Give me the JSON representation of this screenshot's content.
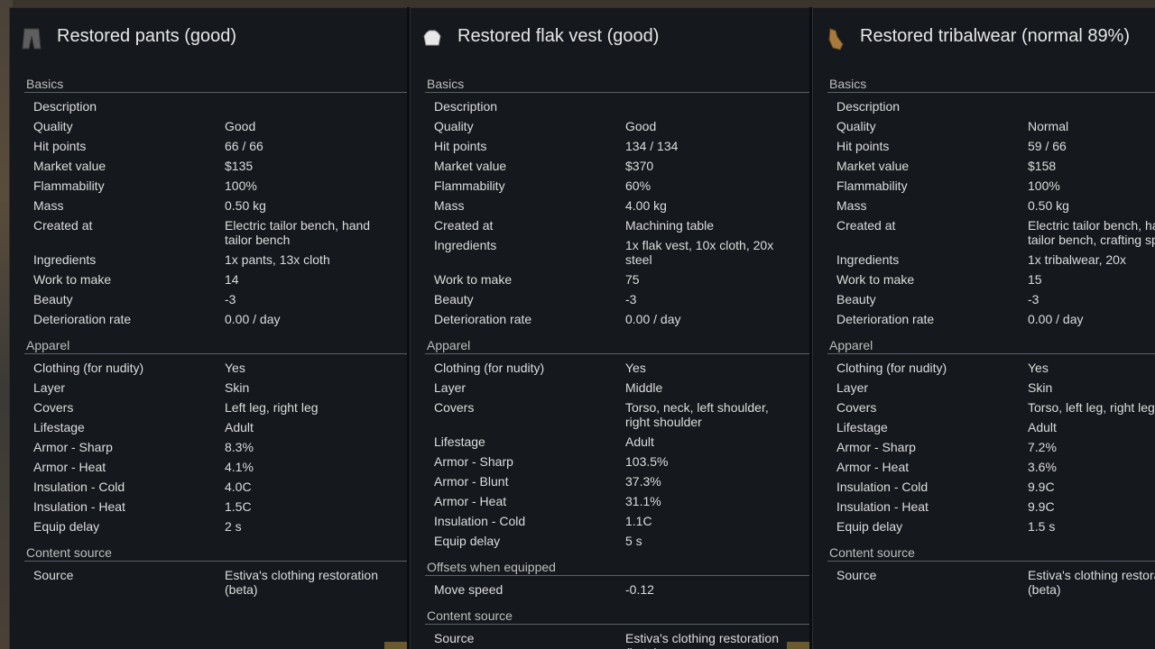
{
  "panels": [
    {
      "title": "Restored pants (good)",
      "icon": "pants-icon",
      "basics_title": "Basics",
      "basics": [
        {
          "label": "Description",
          "value": ""
        },
        {
          "label": "Quality",
          "value": "Good"
        },
        {
          "label": "Hit points",
          "value": "66 / 66"
        },
        {
          "label": "Market value",
          "value": "$135"
        },
        {
          "label": "Flammability",
          "value": "100%"
        },
        {
          "label": "Mass",
          "value": "0.50 kg"
        },
        {
          "label": "Created at",
          "value": "Electric tailor bench, hand tailor bench"
        },
        {
          "label": "Ingredients",
          "value": "1x pants, 13x cloth"
        },
        {
          "label": "Work to make",
          "value": "14"
        },
        {
          "label": "Beauty",
          "value": "-3"
        },
        {
          "label": "Deterioration rate",
          "value": "0.00 / day"
        }
      ],
      "apparel_title": "Apparel",
      "apparel": [
        {
          "label": "Clothing (for nudity)",
          "value": "Yes"
        },
        {
          "label": "Layer",
          "value": "Skin"
        },
        {
          "label": "Covers",
          "value": "Left leg, right leg"
        },
        {
          "label": "Lifestage",
          "value": "Adult"
        },
        {
          "label": "Armor - Sharp",
          "value": "8.3%"
        },
        {
          "label": "Armor - Heat",
          "value": "4.1%"
        },
        {
          "label": "Insulation - Cold",
          "value": "4.0C"
        },
        {
          "label": "Insulation - Heat",
          "value": "1.5C"
        },
        {
          "label": "Equip delay",
          "value": "2 s"
        }
      ],
      "offsets_title": "",
      "offsets": [],
      "content_title": "Content source",
      "content": [
        {
          "label": "Source",
          "value": "Estiva's clothing restoration (beta)"
        }
      ]
    },
    {
      "title": "Restored flak vest (good)",
      "icon": "flak-vest-icon",
      "basics_title": "Basics",
      "basics": [
        {
          "label": "Description",
          "value": ""
        },
        {
          "label": "Quality",
          "value": "Good"
        },
        {
          "label": "Hit points",
          "value": "134 / 134"
        },
        {
          "label": "Market value",
          "value": "$370"
        },
        {
          "label": "Flammability",
          "value": "60%"
        },
        {
          "label": "Mass",
          "value": "4.00 kg"
        },
        {
          "label": "Created at",
          "value": "Machining table"
        },
        {
          "label": "Ingredients",
          "value": "1x flak vest, 10x cloth, 20x steel"
        },
        {
          "label": "Work to make",
          "value": "75"
        },
        {
          "label": "Beauty",
          "value": "-3"
        },
        {
          "label": "Deterioration rate",
          "value": "0.00 / day"
        }
      ],
      "apparel_title": "Apparel",
      "apparel": [
        {
          "label": "Clothing (for nudity)",
          "value": "Yes"
        },
        {
          "label": "Layer",
          "value": "Middle"
        },
        {
          "label": "Covers",
          "value": "Torso, neck, left shoulder, right shoulder"
        },
        {
          "label": "Lifestage",
          "value": "Adult"
        },
        {
          "label": "Armor - Sharp",
          "value": "103.5%"
        },
        {
          "label": "Armor - Blunt",
          "value": "37.3%"
        },
        {
          "label": "Armor - Heat",
          "value": "31.1%"
        },
        {
          "label": "Insulation - Cold",
          "value": "1.1C"
        },
        {
          "label": "Equip delay",
          "value": "5 s"
        }
      ],
      "offsets_title": "Offsets when equipped",
      "offsets": [
        {
          "label": "Move speed",
          "value": "-0.12"
        }
      ],
      "content_title": "Content source",
      "content": [
        {
          "label": "Source",
          "value": "Estiva's clothing restoration (beta)"
        }
      ]
    },
    {
      "title": "Restored tribalwear (normal 89%)",
      "icon": "tribalwear-icon",
      "basics_title": "Basics",
      "basics": [
        {
          "label": "Description",
          "value": ""
        },
        {
          "label": "Quality",
          "value": "Normal"
        },
        {
          "label": "Hit points",
          "value": "59 / 66"
        },
        {
          "label": "Market value",
          "value": "$158"
        },
        {
          "label": "Flammability",
          "value": "100%"
        },
        {
          "label": "Mass",
          "value": "0.50 kg"
        },
        {
          "label": "Created at",
          "value": "Electric tailor bench, hand tailor bench, crafting spot"
        },
        {
          "label": "Ingredients",
          "value": "1x tribalwear, 20x"
        },
        {
          "label": "Work to make",
          "value": "15"
        },
        {
          "label": "Beauty",
          "value": "-3"
        },
        {
          "label": "Deterioration rate",
          "value": "0.00 / day"
        }
      ],
      "apparel_title": "Apparel",
      "apparel": [
        {
          "label": "Clothing (for nudity)",
          "value": "Yes"
        },
        {
          "label": "Layer",
          "value": "Skin"
        },
        {
          "label": "Covers",
          "value": "Torso, left leg, right leg"
        },
        {
          "label": "Lifestage",
          "value": "Adult"
        },
        {
          "label": "Armor - Sharp",
          "value": "7.2%"
        },
        {
          "label": "Armor - Heat",
          "value": "3.6%"
        },
        {
          "label": "Insulation - Cold",
          "value": "9.9C"
        },
        {
          "label": "Insulation - Heat",
          "value": "9.9C"
        },
        {
          "label": "Equip delay",
          "value": "1.5 s"
        }
      ],
      "offsets_title": "",
      "offsets": [],
      "content_title": "Content source",
      "content": [
        {
          "label": "Source",
          "value": "Estiva's clothing restoration (beta)"
        }
      ]
    }
  ]
}
